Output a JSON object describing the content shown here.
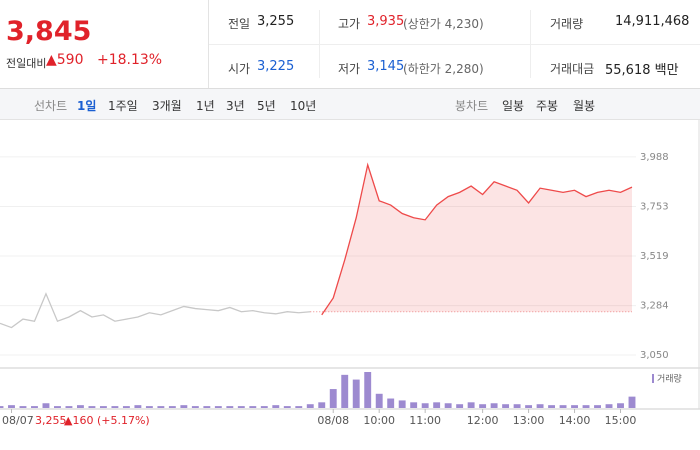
{
  "header": {
    "price": "3,845",
    "change_label": "전일대비",
    "change": "▲590",
    "change_rate": "+18.13%",
    "rows": [
      [
        {
          "label": "전일",
          "value": "3,255"
        },
        {
          "label": "고가",
          "value": "3,935",
          "note": "(상한가 4,230)"
        },
        {
          "label": "거래량",
          "value": "14,911,468"
        }
      ],
      [
        {
          "label": "시가",
          "value": "3,225"
        },
        {
          "label": "저가",
          "value": "3,145",
          "note": "(하한가 2,280)"
        },
        {
          "label": "거래대금",
          "value": "55,618 백만"
        }
      ]
    ]
  },
  "tabs": {
    "line_label": "선차트",
    "line_tabs": [
      "1일",
      "1주일",
      "3개월",
      "1년",
      "3년",
      "5년",
      "10년"
    ],
    "candle_label": "봉차트",
    "candle_tabs": [
      "일봉",
      "주봉",
      "월봉"
    ]
  },
  "chart_data": {
    "type": "line",
    "categories": [
      null,
      "08/07",
      null,
      null,
      null,
      null,
      null,
      null,
      null,
      null,
      null,
      null,
      null,
      null,
      null,
      null,
      null,
      null,
      null,
      null,
      null,
      null,
      null,
      null,
      null,
      null,
      null,
      null,
      null,
      "08/08",
      null,
      null,
      null,
      "10:00",
      null,
      null,
      null,
      "11:00",
      null,
      null,
      null,
      null,
      "12:00",
      null,
      null,
      null,
      "13:00",
      null,
      null,
      null,
      "14:00",
      null,
      null,
      null,
      "15:00",
      null
    ],
    "series": [
      {
        "name": "08/07",
        "color": "#c8c8c8",
        "values": [
          3200,
          3180,
          3220,
          3210,
          3340,
          3210,
          3230,
          3260,
          3230,
          3240,
          3210,
          3220,
          3230,
          3250,
          3240,
          3260,
          3280,
          3270,
          3265,
          3260,
          3275,
          3255,
          3260,
          3250,
          3245,
          3255,
          3250,
          3255,
          null,
          null,
          null,
          null,
          null,
          null,
          null,
          null,
          null,
          null,
          null,
          null,
          null,
          null,
          null,
          null,
          null,
          null,
          null,
          null,
          null,
          null,
          null,
          null,
          null,
          null,
          null,
          null
        ]
      },
      {
        "name": "08/08",
        "color": "#ee4a4a",
        "values": [
          null,
          null,
          null,
          null,
          null,
          null,
          null,
          null,
          null,
          null,
          null,
          null,
          null,
          null,
          null,
          null,
          null,
          null,
          null,
          null,
          null,
          null,
          null,
          null,
          null,
          null,
          null,
          null,
          3240,
          3320,
          3500,
          3700,
          3950,
          3780,
          3760,
          3720,
          3700,
          3690,
          3760,
          3800,
          3820,
          3850,
          3810,
          3870,
          3850,
          3830,
          3770,
          3840,
          3830,
          3820,
          3830,
          3800,
          3820,
          3830,
          3820,
          3845
        ]
      }
    ],
    "reference": 3255,
    "ylim": [
      2998,
      4068
    ],
    "yticks": [
      {
        "value": 3050,
        "label": "3,050"
      },
      {
        "value": 3284,
        "label": "3,284"
      },
      {
        "value": 3519,
        "label": "3,519"
      },
      {
        "value": 3753,
        "label": "3,753"
      },
      {
        "value": 3988,
        "label": "3,988"
      }
    ],
    "grid": true,
    "volume": {
      "name": "거래량",
      "color": "#9d8ad0",
      "values": [
        2,
        3,
        2,
        2,
        5,
        2,
        2,
        3,
        2,
        2,
        2,
        2,
        3,
        2,
        2,
        2,
        3,
        2,
        2,
        2,
        2,
        2,
        2,
        2,
        3,
        2,
        2,
        4,
        6,
        20,
        35,
        30,
        38,
        15,
        10,
        8,
        6,
        5,
        6,
        5,
        4,
        6,
        4,
        5,
        4,
        4,
        3,
        4,
        3,
        3,
        3,
        3,
        3,
        4,
        5,
        12
      ]
    },
    "footer": {
      "date": "08/07",
      "close": "3,255",
      "change": "▲160 (+5.17%)"
    }
  }
}
